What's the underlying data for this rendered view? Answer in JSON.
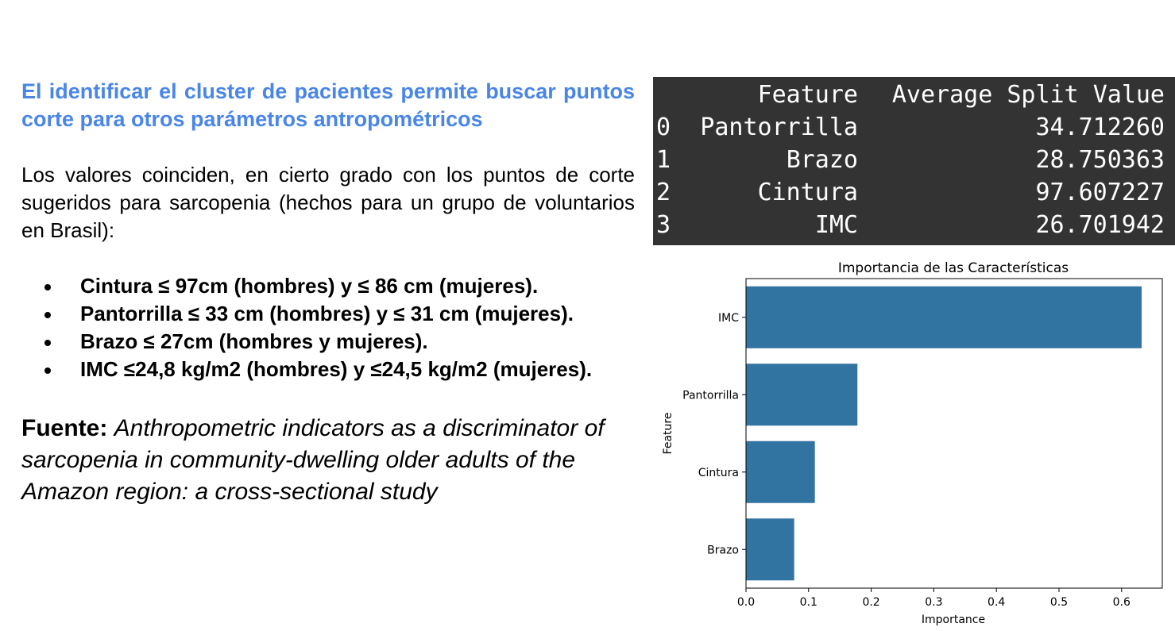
{
  "left": {
    "heading": "El identificar el cluster de pacientes permite buscar puntos corte para otros parámetros antropométricos",
    "intro": "Los valores coinciden, en cierto grado con los puntos de corte sugeridos para sarcopenia (hechos para un grupo de voluntarios en Brasil):",
    "bullets": [
      "Cintura ≤ 97cm (hombres) y ≤ 86 cm (mujeres).",
      "Pantorrilla ≤ 33 cm (hombres) y ≤ 31 cm (mujeres).",
      "Brazo ≤ 27cm (hombres y mujeres).",
      "IMC ≤24,8 kg/m2 (hombres) y ≤24,5 kg/m2 (mujeres)."
    ],
    "source_label": "Fuente:",
    "source_text": "Anthropometric indicators as a discriminator of sarcopenia in community-dwelling older adults of the Amazon region: a cross-sectional study"
  },
  "table": {
    "headers": [
      "",
      "Feature",
      "Average Split Value"
    ],
    "rows": [
      [
        "0",
        "Pantorrilla",
        "34.712260"
      ],
      [
        "1",
        "Brazo",
        "28.750363"
      ],
      [
        "2",
        "Cintura",
        "97.607227"
      ],
      [
        "3",
        "IMC",
        "26.701942"
      ]
    ]
  },
  "chart_data": {
    "type": "bar",
    "orientation": "horizontal",
    "title": "Importancia de las Características",
    "xlabel": "Importance",
    "ylabel": "Feature",
    "categories": [
      "IMC",
      "Pantorrilla",
      "Cintura",
      "Brazo"
    ],
    "values": [
      0.632,
      0.178,
      0.11,
      0.077
    ],
    "xlim": [
      0,
      0.665
    ],
    "xticks": [
      "0.0",
      "0.1",
      "0.2",
      "0.3",
      "0.4",
      "0.5",
      "0.6"
    ],
    "bar_color": "#3274a1",
    "grid": false,
    "legend": "none"
  }
}
